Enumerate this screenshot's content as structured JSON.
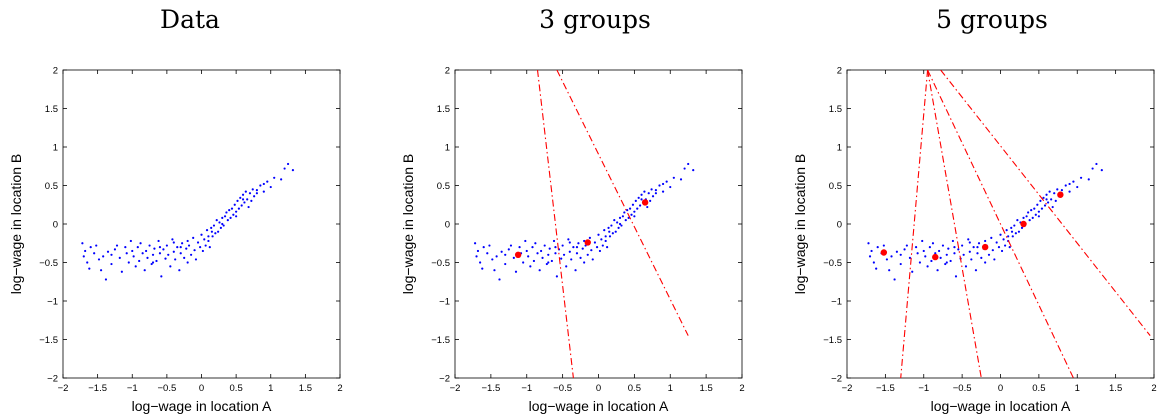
{
  "chart_data": [
    {
      "type": "scatter",
      "title": "Data",
      "xlabel": "log−wage in location A",
      "ylabel": "log−wage in location B",
      "xlim": [
        -2,
        2
      ],
      "ylim": [
        -2,
        2
      ],
      "xticks": [
        "−2",
        "−1.5",
        "−1",
        "−0.5",
        "0",
        "0.5",
        "1",
        "1.5",
        "2"
      ],
      "yticks": [
        "−2",
        "−1.5",
        "−1",
        "−0.5",
        "0",
        "0.5",
        "1",
        "1.5",
        "2"
      ],
      "grid": false,
      "point_color": "#0000ff",
      "points": [
        [
          -1.72,
          -0.25
        ],
        [
          -1.7,
          -0.42
        ],
        [
          -1.68,
          -0.35
        ],
        [
          -1.65,
          -0.5
        ],
        [
          -1.62,
          -0.58
        ],
        [
          -1.6,
          -0.3
        ],
        [
          -1.52,
          -0.28
        ],
        [
          -1.48,
          -0.46
        ],
        [
          -1.45,
          -0.6
        ],
        [
          -1.42,
          -0.42
        ],
        [
          -1.38,
          -0.72
        ],
        [
          -1.35,
          -0.36
        ],
        [
          -1.3,
          -0.52
        ],
        [
          -1.25,
          -0.33
        ],
        [
          -1.22,
          -0.28
        ],
        [
          -1.18,
          -0.44
        ],
        [
          -1.15,
          -0.62
        ],
        [
          -1.1,
          -0.3
        ],
        [
          -1.08,
          -0.38
        ],
        [
          -1.05,
          -0.5
        ],
        [
          -1.02,
          -0.22
        ],
        [
          -1.0,
          -0.35
        ],
        [
          -0.98,
          -0.42
        ],
        [
          -0.95,
          -0.55
        ],
        [
          -0.92,
          -0.3
        ],
        [
          -0.9,
          -0.48
        ],
        [
          -0.88,
          -0.25
        ],
        [
          -0.85,
          -0.38
        ],
        [
          -0.82,
          -0.6
        ],
        [
          -0.8,
          -0.35
        ],
        [
          -0.78,
          -0.44
        ],
        [
          -0.75,
          -0.28
        ],
        [
          -0.72,
          -0.52
        ],
        [
          -0.7,
          -0.4
        ],
        [
          -0.68,
          -0.32
        ],
        [
          -0.65,
          -0.48
        ],
        [
          -0.62,
          -0.22
        ],
        [
          -0.6,
          -0.38
        ],
        [
          -0.58,
          -0.68
        ],
        [
          -0.55,
          -0.33
        ],
        [
          -0.52,
          -0.45
        ],
        [
          -0.5,
          -0.28
        ],
        [
          -0.48,
          -0.4
        ],
        [
          -0.45,
          -0.55
        ],
        [
          -0.42,
          -0.2
        ],
        [
          -0.4,
          -0.36
        ],
        [
          -0.38,
          -0.46
        ],
        [
          -0.35,
          -0.3
        ],
        [
          -0.32,
          -0.6
        ],
        [
          -0.3,
          -0.38
        ],
        [
          -0.28,
          -0.25
        ],
        [
          -0.25,
          -0.44
        ],
        [
          -0.22,
          -0.32
        ],
        [
          -0.2,
          -0.5
        ],
        [
          -0.18,
          -0.28
        ],
        [
          -0.15,
          -0.4
        ],
        [
          -0.12,
          -0.18
        ],
        [
          -0.1,
          -0.34
        ],
        [
          -0.08,
          -0.46
        ],
        [
          -0.05,
          -0.24
        ],
        [
          -0.02,
          -0.3
        ],
        [
          0.0,
          -0.14
        ],
        [
          0.02,
          -0.35
        ],
        [
          0.04,
          -0.2
        ],
        [
          0.06,
          -0.28
        ],
        [
          0.08,
          -0.08
        ],
        [
          0.1,
          -0.22
        ],
        [
          0.12,
          -0.3
        ],
        [
          0.14,
          -0.05
        ],
        [
          0.16,
          -0.16
        ],
        [
          0.18,
          -0.02
        ],
        [
          0.2,
          -0.12
        ],
        [
          0.22,
          0.05
        ],
        [
          0.24,
          -0.1
        ],
        [
          0.26,
          0.02
        ],
        [
          0.28,
          -0.05
        ],
        [
          0.3,
          0.08
        ],
        [
          0.32,
          -0.02
        ],
        [
          0.34,
          0.1
        ],
        [
          0.36,
          0.15
        ],
        [
          0.38,
          0.05
        ],
        [
          0.4,
          0.18
        ],
        [
          0.42,
          0.08
        ],
        [
          0.44,
          0.2
        ],
        [
          0.46,
          0.12
        ],
        [
          0.48,
          0.25
        ],
        [
          0.5,
          0.16
        ],
        [
          0.52,
          0.3
        ],
        [
          0.54,
          0.2
        ],
        [
          0.56,
          0.34
        ],
        [
          0.58,
          0.24
        ],
        [
          0.6,
          0.38
        ],
        [
          0.62,
          0.28
        ],
        [
          0.64,
          0.42
        ],
        [
          0.66,
          0.32
        ],
        [
          0.68,
          0.22
        ],
        [
          0.7,
          0.4
        ],
        [
          0.72,
          0.3
        ],
        [
          0.74,
          0.45
        ],
        [
          0.76,
          0.36
        ],
        [
          0.8,
          0.4
        ],
        [
          0.85,
          0.5
        ],
        [
          0.9,
          0.42
        ],
        [
          0.95,
          0.55
        ],
        [
          1.0,
          0.48
        ],
        [
          1.05,
          0.6
        ],
        [
          1.15,
          0.58
        ],
        [
          1.2,
          0.72
        ],
        [
          1.25,
          0.78
        ],
        [
          1.32,
          0.7
        ],
        [
          -0.6,
          -0.3
        ],
        [
          -0.4,
          -0.24
        ],
        [
          -0.2,
          -0.22
        ],
        [
          0.1,
          -0.16
        ],
        [
          0.3,
          0.0
        ],
        [
          0.5,
          0.1
        ],
        [
          0.6,
          0.32
        ],
        [
          0.8,
          0.44
        ],
        [
          0.9,
          0.52
        ],
        [
          -1.55,
          -0.38
        ],
        [
          -1.3,
          -0.4
        ],
        [
          -0.7,
          -0.5
        ],
        [
          -0.3,
          -0.3
        ],
        [
          0.15,
          -0.1
        ]
      ]
    },
    {
      "type": "scatter",
      "title": "3 groups",
      "xlabel": "log−wage in location A",
      "ylabel": "log−wage in location B",
      "xlim": [
        -2,
        2
      ],
      "ylim": [
        -2,
        2
      ],
      "xticks": [
        "−2",
        "−1.5",
        "−1",
        "−0.5",
        "0",
        "0.5",
        "1",
        "1.5",
        "2"
      ],
      "yticks": [
        "−2",
        "−1.5",
        "−1",
        "−0.5",
        "0",
        "0.5",
        "1",
        "1.5",
        "2"
      ],
      "grid": false,
      "point_color": "#0000ff",
      "centroid_color": "#ff0000",
      "centroids": [
        [
          -1.12,
          -0.4
        ],
        [
          -0.15,
          -0.24
        ],
        [
          0.65,
          0.28
        ]
      ],
      "boundaries": [
        [
          [
            -0.85,
            2.0
          ],
          [
            -0.35,
            -2.0
          ]
        ],
        [
          [
            -0.58,
            2.0
          ],
          [
            1.25,
            -1.45
          ]
        ]
      ]
    },
    {
      "type": "scatter",
      "title": "5 groups",
      "xlabel": "log−wage in location A",
      "ylabel": "log−wage in location B",
      "xlim": [
        -2,
        2
      ],
      "ylim": [
        -2,
        2
      ],
      "xticks": [
        "−2",
        "−1.5",
        "−1",
        "−0.5",
        "0",
        "0.5",
        "1",
        "1.5",
        "2"
      ],
      "yticks": [
        "−2",
        "−1.5",
        "−1",
        "−0.5",
        "0",
        "0.5",
        "1",
        "1.5",
        "2"
      ],
      "grid": false,
      "point_color": "#0000ff",
      "centroid_color": "#ff0000",
      "centroids": [
        [
          -1.52,
          -0.37
        ],
        [
          -0.85,
          -0.43
        ],
        [
          -0.2,
          -0.3
        ],
        [
          0.3,
          0.0
        ],
        [
          0.78,
          0.38
        ]
      ],
      "boundaries": [
        [
          [
            -0.95,
            2.0
          ],
          [
            -1.3,
            -2.0
          ]
        ],
        [
          [
            -0.95,
            2.0
          ],
          [
            -0.25,
            -2.0
          ]
        ],
        [
          [
            -0.95,
            2.0
          ],
          [
            0.95,
            -2.0
          ]
        ],
        [
          [
            -0.78,
            2.0
          ],
          [
            1.95,
            -1.45
          ]
        ]
      ]
    }
  ]
}
